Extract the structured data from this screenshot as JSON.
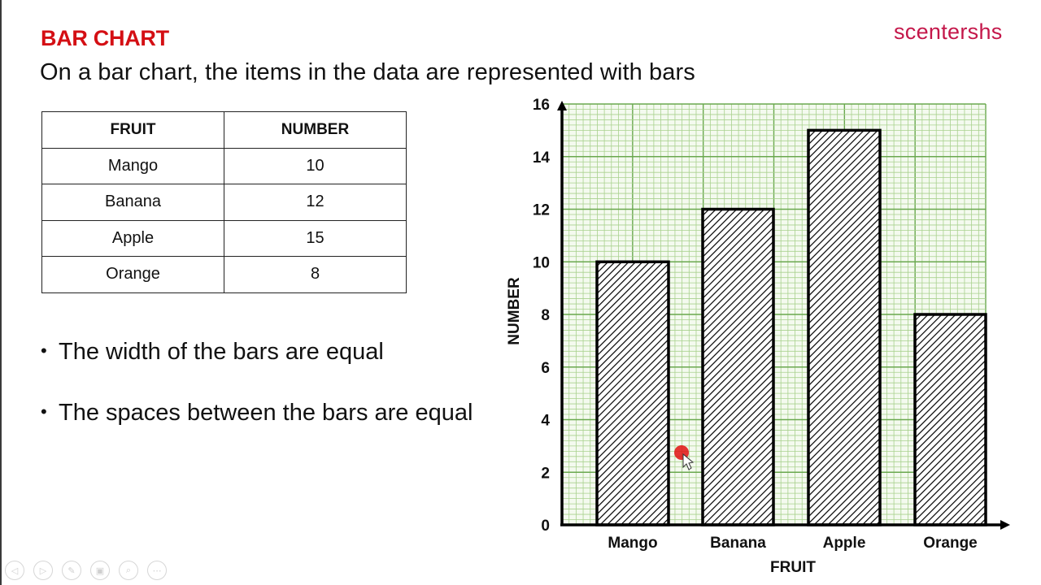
{
  "header": {
    "title": "BAR CHART",
    "subtitle": "On a bar chart, the items in the data are represented with bars",
    "brand": "scentershs"
  },
  "table": {
    "columns": [
      "FRUIT",
      "NUMBER"
    ],
    "rows": [
      {
        "fruit": "Mango",
        "number": "10"
      },
      {
        "fruit": "Banana",
        "number": "12"
      },
      {
        "fruit": "Apple",
        "number": "15"
      },
      {
        "fruit": "Orange",
        "number": "8"
      }
    ]
  },
  "bullets": [
    "The width of the bars are equal",
    "The spaces between the bars are equal"
  ],
  "chart_data": {
    "type": "bar",
    "title": "",
    "categories": [
      "Mango",
      "Banana",
      "Apple",
      "Orange"
    ],
    "values": [
      10,
      12,
      15,
      8
    ],
    "xlabel": "FRUIT",
    "ylabel": "NUMBER",
    "ylim": [
      0,
      16
    ],
    "yticks": [
      0,
      2,
      4,
      6,
      8,
      10,
      12,
      14,
      16
    ],
    "grid": true,
    "grid_style": "graph paper (green major/minor grid)",
    "bar_fill": "diagonal hatch, black outline",
    "legend": null
  },
  "colors": {
    "title": "#d40f14",
    "brand": "#c4174a",
    "grid_major": "#6aa84f",
    "grid_minor": "#a9d18e",
    "grid_bg": "#f4faef",
    "bar_outline": "#000000"
  },
  "controls": [
    {
      "name": "previous-slide",
      "glyph": "◁"
    },
    {
      "name": "next-slide",
      "glyph": "▷"
    },
    {
      "name": "pen",
      "glyph": "✎"
    },
    {
      "name": "slide-sorter",
      "glyph": "▣"
    },
    {
      "name": "zoom",
      "glyph": "⌕"
    },
    {
      "name": "more",
      "glyph": "⋯"
    }
  ]
}
